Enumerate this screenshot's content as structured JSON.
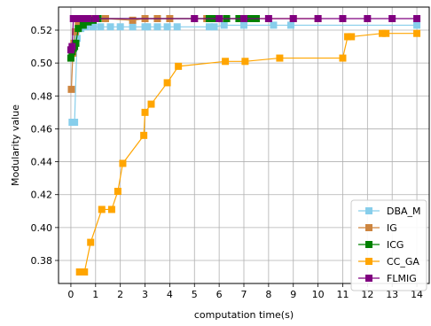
{
  "chart_data": {
    "type": "line",
    "title": "",
    "xlabel": "computation time(s)",
    "ylabel": "Modularity value",
    "xlim": [
      -0.5,
      14.5
    ],
    "ylim": [
      0.366,
      0.534
    ],
    "xticks": [
      0,
      1,
      2,
      3,
      4,
      5,
      6,
      7,
      8,
      9,
      10,
      11,
      12,
      13,
      14
    ],
    "yticks": [
      0.38,
      0.4,
      0.42,
      0.44,
      0.46,
      0.48,
      0.5,
      0.52
    ],
    "ytick_labels": [
      "0.38",
      "0.40",
      "0.42",
      "0.44",
      "0.46",
      "0.48",
      "0.50",
      "0.52"
    ],
    "grid": true,
    "legend_position": "lower-right",
    "series": [
      {
        "name": "DBA_M",
        "color": "#87ceeb",
        "x": [
          0.05,
          0.15,
          0.25,
          0.4,
          0.6,
          0.9,
          1.2,
          1.6,
          2.0,
          2.5,
          3.0,
          3.1,
          3.5,
          3.9,
          4.3,
          5.6,
          5.8,
          6.2,
          7.0,
          8.2,
          8.9,
          14.0
        ],
        "y": [
          0.464,
          0.464,
          0.515,
          0.521,
          0.522,
          0.522,
          0.522,
          0.522,
          0.522,
          0.522,
          0.522,
          0.522,
          0.522,
          0.522,
          0.522,
          0.522,
          0.522,
          0.523,
          0.523,
          0.523,
          0.523,
          0.523
        ]
      },
      {
        "name": "IG",
        "color": "#cd853f",
        "x": [
          0.02,
          0.08,
          0.12,
          0.18,
          0.3,
          0.5,
          0.8,
          1.1,
          1.4,
          2.5,
          3.0,
          3.5,
          4.0,
          5.0,
          5.5,
          6.0,
          7.0,
          7.5,
          9.0,
          10.0
        ],
        "y": [
          0.484,
          0.506,
          0.512,
          0.519,
          0.524,
          0.526,
          0.527,
          0.527,
          0.527,
          0.526,
          0.527,
          0.527,
          0.527,
          0.527,
          0.527,
          0.527,
          0.527,
          0.527,
          0.527,
          0.527
        ]
      },
      {
        "name": "ICG",
        "color": "#008000",
        "x": [
          0.0,
          0.05,
          0.1,
          0.15,
          0.2,
          0.3,
          0.5,
          0.7,
          0.9,
          1.1,
          5.6,
          5.8,
          6.3,
          6.8,
          7.0,
          7.1,
          7.3,
          7.5
        ],
        "y": [
          0.503,
          0.507,
          0.509,
          0.51,
          0.512,
          0.521,
          0.523,
          0.525,
          0.526,
          0.527,
          0.527,
          0.527,
          0.527,
          0.527,
          0.527,
          0.527,
          0.527,
          0.527
        ]
      },
      {
        "name": "CC_GA",
        "color": "#ffa500",
        "x": [
          0.35,
          0.55,
          0.8,
          1.25,
          1.65,
          1.9,
          2.1,
          2.95,
          3.0,
          3.25,
          3.9,
          4.35,
          6.25,
          7.05,
          8.45,
          11.0,
          11.2,
          11.35,
          12.6,
          12.75,
          14.0
        ],
        "y": [
          0.373,
          0.373,
          0.391,
          0.411,
          0.411,
          0.422,
          0.439,
          0.456,
          0.47,
          0.475,
          0.488,
          0.498,
          0.501,
          0.501,
          0.503,
          0.503,
          0.516,
          0.516,
          0.518,
          0.518,
          0.518
        ]
      },
      {
        "name": "FLMIG",
        "color": "#800080",
        "x": [
          0.0,
          0.05,
          0.1,
          0.2,
          0.35,
          0.5,
          0.7,
          1.0,
          5.0,
          6.0,
          7.0,
          8.0,
          9.0,
          10.0,
          11.0,
          12.0,
          13.0,
          14.0
        ],
        "y": [
          0.508,
          0.51,
          0.527,
          0.527,
          0.527,
          0.527,
          0.527,
          0.527,
          0.527,
          0.527,
          0.527,
          0.527,
          0.527,
          0.527,
          0.527,
          0.527,
          0.527,
          0.527
        ]
      }
    ]
  }
}
